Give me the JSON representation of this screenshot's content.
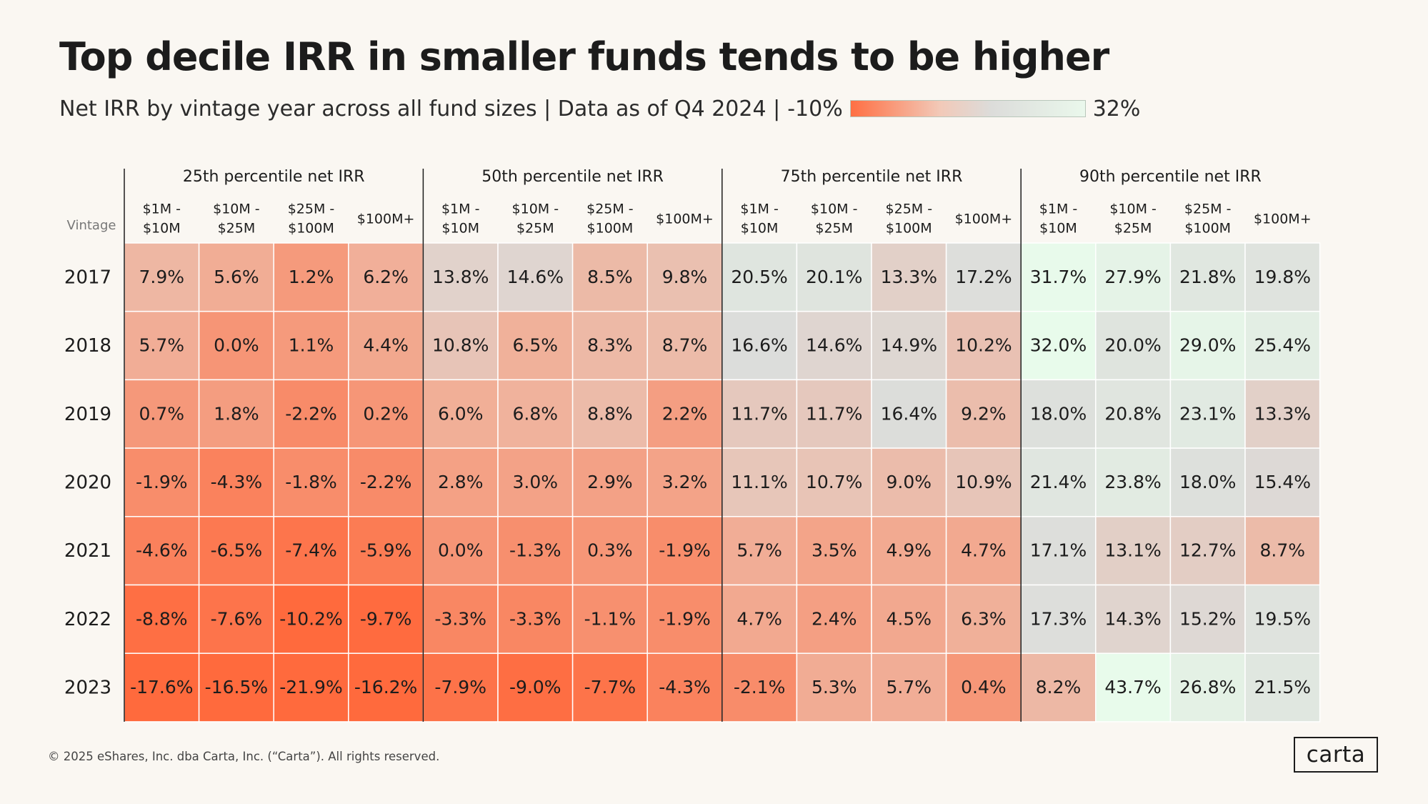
{
  "title": "Top decile IRR in smaller funds tends to be higher",
  "subtitle": "Net IRR by vintage year across all fund sizes | Data as of Q4 2024  |",
  "legend": {
    "min_label": "-10%",
    "max_label": "32%",
    "min": -10,
    "max": 32,
    "colors": {
      "low": "#ff6f43",
      "mid": "#dcdcda",
      "high": "#eaf8ec"
    }
  },
  "footer": "© 2025 eShares, Inc. dba Carta, Inc. (“Carta”). All rights reserved.",
  "logo": "carta",
  "chart_data": {
    "type": "heatmap",
    "row_header": "Vintage",
    "rows": [
      "2017",
      "2018",
      "2019",
      "2020",
      "2021",
      "2022",
      "2023"
    ],
    "groups": [
      {
        "name": "25th percentile net IRR",
        "columns": [
          [
            "$1M -",
            "$10M"
          ],
          [
            "$10M -",
            "$25M"
          ],
          [
            "$25M -",
            "$100M"
          ],
          [
            "$100M+"
          ]
        ],
        "values": [
          [
            7.9,
            5.6,
            1.2,
            6.2
          ],
          [
            5.7,
            0.0,
            1.1,
            4.4
          ],
          [
            0.7,
            1.8,
            -2.2,
            0.2
          ],
          [
            -1.9,
            -4.3,
            -1.8,
            -2.2
          ],
          [
            -4.6,
            -6.5,
            -7.4,
            -5.9
          ],
          [
            -8.8,
            -7.6,
            -10.2,
            -9.7
          ],
          [
            -17.6,
            -16.5,
            -21.9,
            -16.2
          ]
        ]
      },
      {
        "name": "50th percentile net IRR",
        "columns": [
          [
            "$1M -",
            "$10M"
          ],
          [
            "$10M -",
            "$25M"
          ],
          [
            "$25M -",
            "$100M"
          ],
          [
            "$100M+"
          ]
        ],
        "values": [
          [
            13.8,
            14.6,
            8.5,
            9.8
          ],
          [
            10.8,
            6.5,
            8.3,
            8.7
          ],
          [
            6.0,
            6.8,
            8.8,
            2.2
          ],
          [
            2.8,
            3.0,
            2.9,
            3.2
          ],
          [
            0.0,
            -1.3,
            0.3,
            -1.9
          ],
          [
            -3.3,
            -3.3,
            -1.1,
            -1.9
          ],
          [
            -7.9,
            -9.0,
            -7.7,
            -4.3
          ]
        ]
      },
      {
        "name": "75th percentile net IRR",
        "columns": [
          [
            "$1M -",
            "$10M"
          ],
          [
            "$10M -",
            "$25M"
          ],
          [
            "$25M -",
            "$100M"
          ],
          [
            "$100M+"
          ]
        ],
        "values": [
          [
            20.5,
            20.1,
            13.3,
            17.2
          ],
          [
            16.6,
            14.6,
            14.9,
            10.2
          ],
          [
            11.7,
            11.7,
            16.4,
            9.2
          ],
          [
            11.1,
            10.7,
            9.0,
            10.9
          ],
          [
            5.7,
            3.5,
            4.9,
            4.7
          ],
          [
            4.7,
            2.4,
            4.5,
            6.3
          ],
          [
            -2.1,
            5.3,
            5.7,
            0.4
          ]
        ]
      },
      {
        "name": "90th percentile net IRR",
        "columns": [
          [
            "$1M -",
            "$10M"
          ],
          [
            "$10M -",
            "$25M"
          ],
          [
            "$25M -",
            "$100M"
          ],
          [
            "$100M+"
          ]
        ],
        "values": [
          [
            31.7,
            27.9,
            21.8,
            19.8
          ],
          [
            32.0,
            20.0,
            29.0,
            25.4
          ],
          [
            18.0,
            20.8,
            23.1,
            13.3
          ],
          [
            21.4,
            23.8,
            18.0,
            15.4
          ],
          [
            17.1,
            13.1,
            12.7,
            8.7
          ],
          [
            17.3,
            14.3,
            15.2,
            19.5
          ],
          [
            8.2,
            43.7,
            26.8,
            21.5
          ]
        ]
      }
    ]
  }
}
